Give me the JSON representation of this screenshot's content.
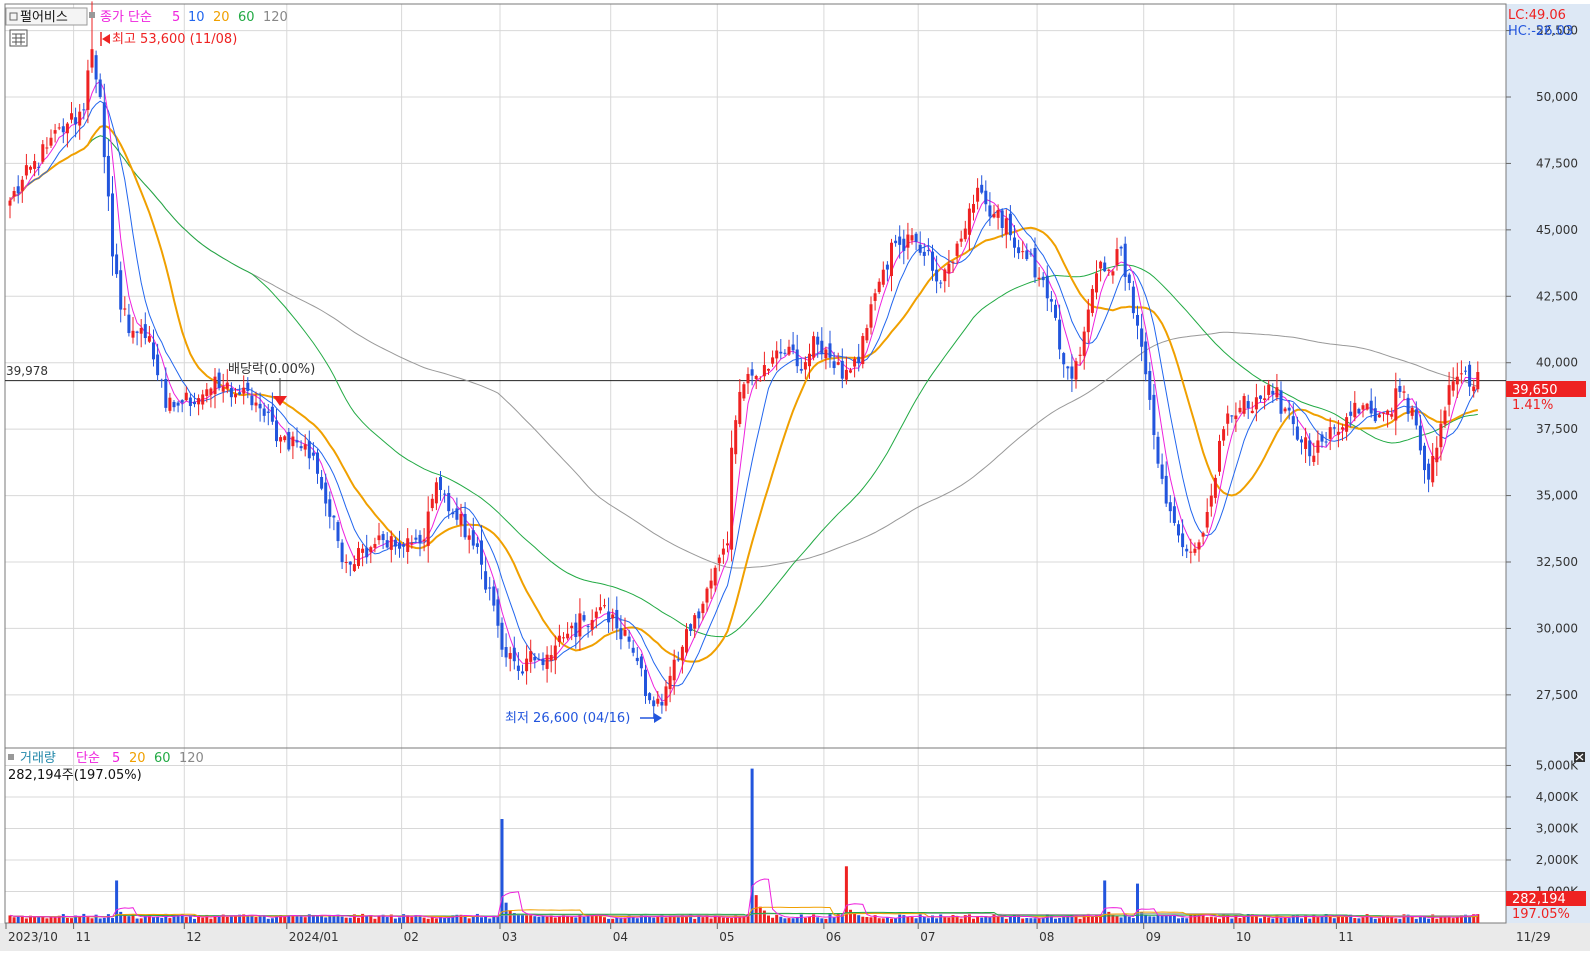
{
  "window": {
    "title": "펄어비스",
    "side_top": {
      "lc": "LC:49.06",
      "hc": "HC:-26.03"
    }
  },
  "colors": {
    "up": "#ee2222",
    "down": "#2255dd",
    "ma5": "#ee22dd",
    "ma10": "#2266ee",
    "ma20": "#f0a000",
    "ma60": "#22aa44",
    "ma120": "#999999",
    "axis_bg": "#dde8f5",
    "grid": "#d8d8d8"
  },
  "price_panel": {
    "legend": {
      "close_label": "종가 단순",
      "p5": "5",
      "p10": "10",
      "p20": "20",
      "p60": "60",
      "p120": "120"
    },
    "high_note": "최고 53,600 (11/08)",
    "low_note": "최저 26,600 (04/16)",
    "dividend_note": "배당락(0.00%)",
    "ref_line_label": "39,978",
    "last_price_label": "39,650",
    "last_change_label": "1.41%",
    "y_ticks": [
      "52,500",
      "50,000",
      "47,500",
      "45,000",
      "42,500",
      "40,000",
      "37,500",
      "35,000",
      "32,500",
      "30,000",
      "27,500"
    ]
  },
  "volume_panel": {
    "legend": {
      "label": "거래량",
      "simple": "단순",
      "p5": "5",
      "p20": "20",
      "p60": "60",
      "p120": "120"
    },
    "current_note": "282,194주(197.05%)",
    "last_vol_label": "282,194",
    "last_vol_pct": "197.05%",
    "y_ticks": [
      "5,000K",
      "4,000K",
      "3,000K",
      "2,000K",
      "1,000K"
    ]
  },
  "x_axis": {
    "labels": [
      "2023/10",
      "11",
      "12",
      "2024/01",
      "02",
      "03",
      "04",
      "05",
      "06",
      "07",
      "08",
      "09",
      "10",
      "11"
    ],
    "right_label": "11/29"
  },
  "chart_data": {
    "type": "candlestick",
    "title": "펄어비스",
    "price_range": [
      25500,
      53500
    ],
    "volume_range_k": [
      0,
      5300
    ],
    "reference_line": 39978,
    "last_close": 39650,
    "last_change_pct": 1.41,
    "high": {
      "value": 53600,
      "date": "11/08"
    },
    "low": {
      "value": 26600,
      "date": "04/16"
    },
    "anchors": [
      [
        0,
        46100
      ],
      [
        9,
        48100
      ],
      [
        14,
        49000
      ],
      [
        18,
        49500
      ],
      [
        19,
        51000
      ],
      [
        20,
        51800
      ],
      [
        22,
        50000
      ],
      [
        25,
        44000
      ],
      [
        27,
        42000
      ],
      [
        30,
        41200
      ],
      [
        34,
        41000
      ],
      [
        38,
        38300
      ],
      [
        42,
        38500
      ],
      [
        48,
        39000
      ],
      [
        52,
        39100
      ],
      [
        56,
        38800
      ],
      [
        60,
        38500
      ],
      [
        62,
        38000
      ],
      [
        66,
        37200
      ],
      [
        70,
        37000
      ],
      [
        74,
        36500
      ],
      [
        78,
        34200
      ],
      [
        82,
        32500
      ],
      [
        86,
        33000
      ],
      [
        90,
        33500
      ],
      [
        95,
        33000
      ],
      [
        100,
        33200
      ],
      [
        104,
        35500
      ],
      [
        108,
        34300
      ],
      [
        112,
        33500
      ],
      [
        117,
        31500
      ],
      [
        120,
        29200
      ],
      [
        124,
        28400
      ],
      [
        128,
        28800
      ],
      [
        132,
        29000
      ],
      [
        136,
        29800
      ],
      [
        140,
        30300
      ],
      [
        144,
        30800
      ],
      [
        148,
        30000
      ],
      [
        151,
        29500
      ],
      [
        154,
        28500
      ],
      [
        156,
        27300
      ],
      [
        159,
        27100
      ],
      [
        163,
        28800
      ],
      [
        167,
        30500
      ],
      [
        171,
        31800
      ],
      [
        175,
        33200
      ],
      [
        176,
        36800
      ],
      [
        178,
        38900
      ],
      [
        182,
        39500
      ],
      [
        186,
        40200
      ],
      [
        190,
        40600
      ],
      [
        193,
        39700
      ],
      [
        196,
        41000
      ],
      [
        199,
        40500
      ],
      [
        201,
        39800
      ],
      [
        203,
        39400
      ],
      [
        207,
        40000
      ],
      [
        210,
        42200
      ],
      [
        213,
        43500
      ],
      [
        216,
        44500
      ],
      [
        220,
        44800
      ],
      [
        224,
        44200
      ],
      [
        227,
        43000
      ],
      [
        230,
        43800
      ],
      [
        234,
        45800
      ],
      [
        237,
        46400
      ],
      [
        240,
        45600
      ],
      [
        244,
        44800
      ],
      [
        248,
        43900
      ],
      [
        251,
        43200
      ],
      [
        254,
        42300
      ],
      [
        256,
        40500
      ],
      [
        259,
        39400
      ],
      [
        261,
        40300
      ],
      [
        263,
        42000
      ],
      [
        266,
        43800
      ],
      [
        268,
        43500
      ],
      [
        271,
        44300
      ],
      [
        273,
        43000
      ],
      [
        276,
        40600
      ],
      [
        278,
        38600
      ],
      [
        280,
        36200
      ],
      [
        282,
        34700
      ],
      [
        285,
        33500
      ],
      [
        287,
        32900
      ],
      [
        289,
        33000
      ],
      [
        291,
        33600
      ],
      [
        293,
        35000
      ],
      [
        296,
        37500
      ],
      [
        300,
        38300
      ],
      [
        304,
        38700
      ],
      [
        308,
        38800
      ],
      [
        312,
        38200
      ],
      [
        315,
        37000
      ],
      [
        318,
        36500
      ],
      [
        321,
        37000
      ],
      [
        324,
        37400
      ],
      [
        327,
        38000
      ],
      [
        330,
        38400
      ],
      [
        333,
        37800
      ],
      [
        336,
        38200
      ],
      [
        339,
        38900
      ],
      [
        342,
        38300
      ],
      [
        344,
        36700
      ],
      [
        346,
        35600
      ],
      [
        348,
        36800
      ],
      [
        350,
        38200
      ],
      [
        352,
        39300
      ],
      [
        354,
        39600
      ],
      [
        356,
        39100
      ],
      [
        358,
        39650
      ]
    ],
    "volume_spikes_k": [
      [
        26,
        1350
      ],
      [
        120,
        3300
      ],
      [
        181,
        4900
      ],
      [
        204,
        1800
      ],
      [
        267,
        1350
      ],
      [
        275,
        1250
      ]
    ],
    "moving_averages": [
      5,
      10,
      20,
      60,
      120
    ],
    "volume_moving_averages": [
      5,
      20,
      60,
      120
    ]
  }
}
